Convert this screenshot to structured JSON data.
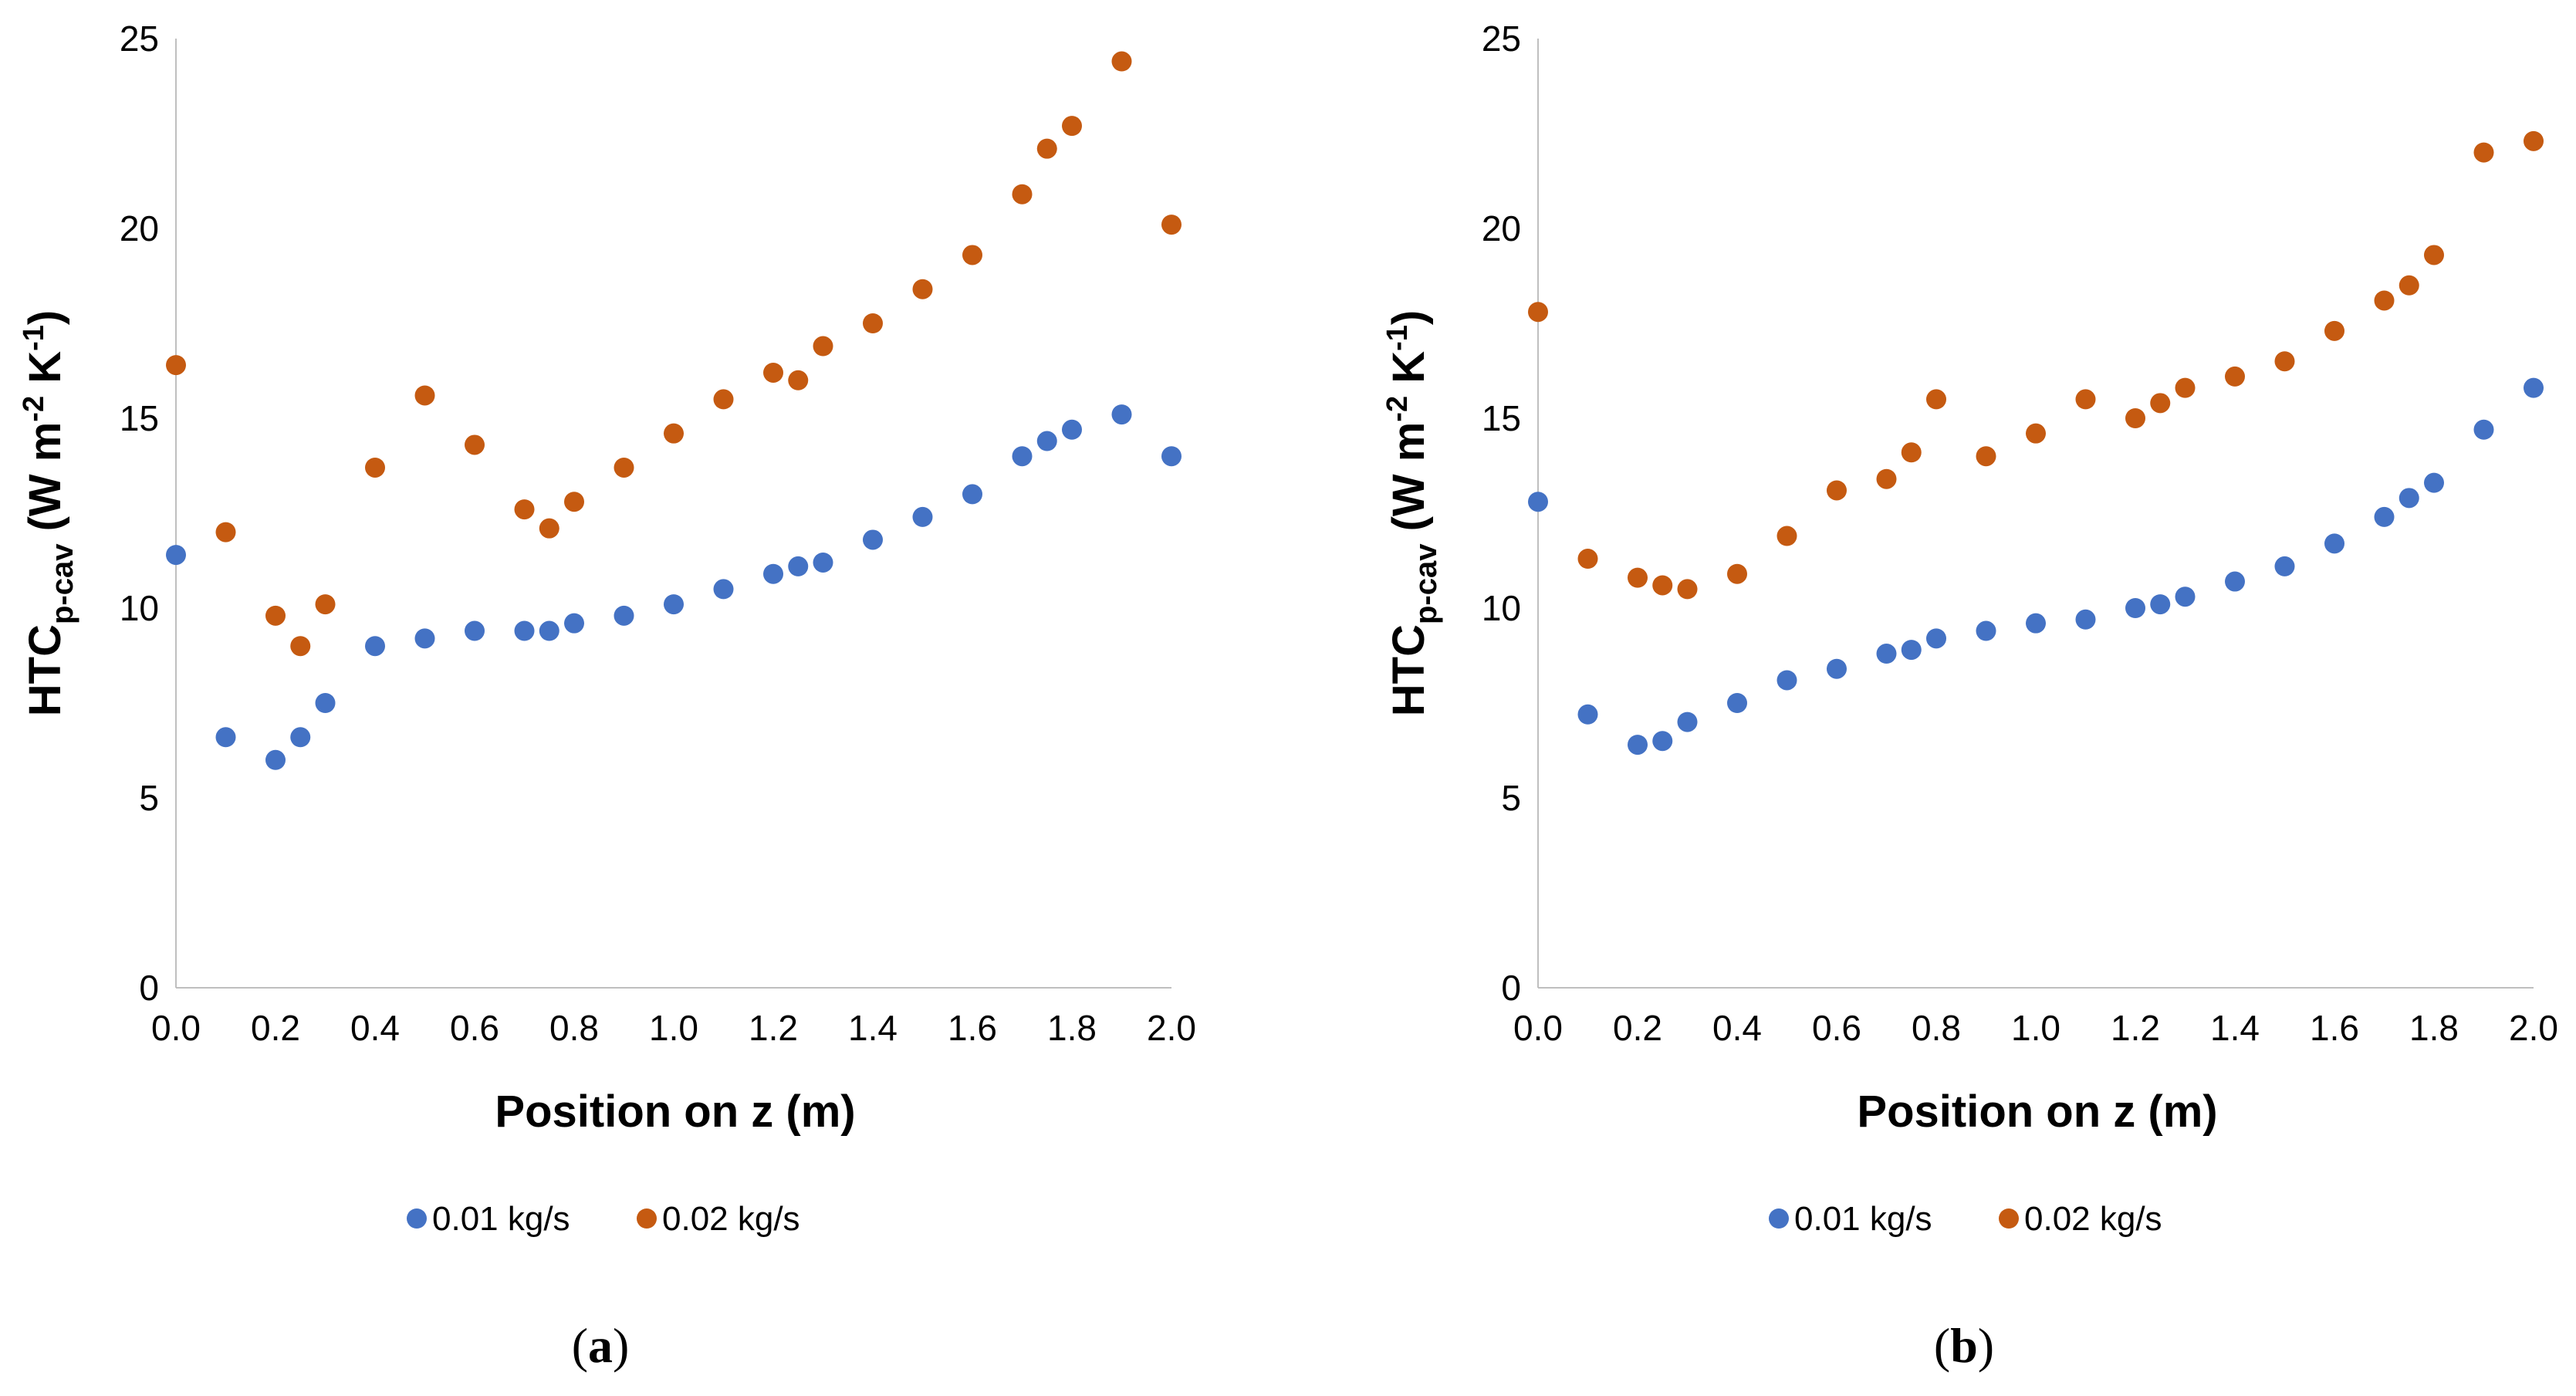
{
  "chart_data": [
    {
      "type": "scatter",
      "panel_label": "a",
      "xlabel": "Position on z (m)",
      "ylabel": {
        "main": "HTC",
        "subscript": "p-cav",
        "units_open": " (W m",
        "sup1": "-2",
        "units_mid": " K",
        "sup2": "-1",
        "units_close": ")"
      },
      "xlim": [
        0,
        2
      ],
      "ylim": [
        0,
        25
      ],
      "x_ticks": [
        "0.0",
        "0.2",
        "0.4",
        "0.6",
        "0.8",
        "1.0",
        "1.2",
        "1.4",
        "1.6",
        "1.8",
        "2.0"
      ],
      "y_ticks": [
        "0",
        "5",
        "10",
        "15",
        "20",
        "25"
      ],
      "grid": false,
      "legend_position": "bottom",
      "series": [
        {
          "name": "0.01 kg/s",
          "color": "#4472C4",
          "x": [
            0.0,
            0.1,
            0.2,
            0.25,
            0.3,
            0.4,
            0.5,
            0.6,
            0.7,
            0.75,
            0.8,
            0.9,
            1.0,
            1.1,
            1.2,
            1.25,
            1.3,
            1.4,
            1.5,
            1.6,
            1.7,
            1.75,
            1.8,
            1.9,
            2.0
          ],
          "y": [
            11.4,
            6.6,
            6.0,
            6.6,
            7.5,
            9.0,
            9.2,
            9.4,
            9.4,
            9.4,
            9.6,
            9.8,
            10.1,
            10.5,
            10.9,
            11.1,
            11.2,
            11.8,
            12.4,
            13.0,
            14.0,
            14.4,
            14.7,
            15.1,
            14.0
          ]
        },
        {
          "name": "0.02 kg/s",
          "color": "#C55A11",
          "x": [
            0.0,
            0.1,
            0.2,
            0.25,
            0.3,
            0.4,
            0.5,
            0.6,
            0.7,
            0.75,
            0.8,
            0.9,
            1.0,
            1.1,
            1.2,
            1.25,
            1.3,
            1.4,
            1.5,
            1.6,
            1.7,
            1.75,
            1.8,
            1.9,
            2.0
          ],
          "y": [
            16.4,
            12.0,
            9.8,
            9.0,
            10.1,
            13.7,
            15.6,
            14.3,
            12.6,
            12.1,
            12.8,
            13.7,
            14.6,
            15.5,
            16.2,
            16.0,
            16.9,
            17.5,
            18.4,
            19.3,
            20.9,
            22.1,
            22.7,
            24.4,
            20.1
          ]
        }
      ]
    },
    {
      "type": "scatter",
      "panel_label": "b",
      "xlabel": "Position on z (m)",
      "ylabel": {
        "main": "HTC",
        "subscript": "p-cav",
        "units_open": " (W m",
        "sup1": "-2",
        "units_mid": " K",
        "sup2": "-1",
        "units_close": ")"
      },
      "xlim": [
        0,
        2
      ],
      "ylim": [
        0,
        25
      ],
      "x_ticks": [
        "0.0",
        "0.2",
        "0.4",
        "0.6",
        "0.8",
        "1.0",
        "1.2",
        "1.4",
        "1.6",
        "1.8",
        "2.0"
      ],
      "y_ticks": [
        "0",
        "5",
        "10",
        "15",
        "20",
        "25"
      ],
      "grid": false,
      "legend_position": "bottom",
      "series": [
        {
          "name": "0.01 kg/s",
          "color": "#4472C4",
          "x": [
            0.0,
            0.1,
            0.2,
            0.25,
            0.3,
            0.4,
            0.5,
            0.6,
            0.7,
            0.75,
            0.8,
            0.9,
            1.0,
            1.1,
            1.2,
            1.25,
            1.3,
            1.4,
            1.5,
            1.6,
            1.7,
            1.75,
            1.8,
            1.9,
            2.0
          ],
          "y": [
            12.8,
            7.2,
            6.4,
            6.5,
            7.0,
            7.5,
            8.1,
            8.4,
            8.8,
            8.9,
            9.2,
            9.4,
            9.6,
            9.7,
            10.0,
            10.1,
            10.3,
            10.7,
            11.1,
            11.7,
            12.4,
            12.9,
            13.3,
            14.7,
            15.8
          ]
        },
        {
          "name": "0.02 kg/s",
          "color": "#C55A11",
          "x": [
            0.0,
            0.1,
            0.2,
            0.25,
            0.3,
            0.4,
            0.5,
            0.6,
            0.7,
            0.75,
            0.8,
            0.9,
            1.0,
            1.1,
            1.2,
            1.25,
            1.3,
            1.4,
            1.5,
            1.6,
            1.7,
            1.75,
            1.8,
            1.9,
            2.0
          ],
          "y": [
            17.8,
            11.3,
            10.8,
            10.6,
            10.5,
            10.9,
            11.9,
            13.1,
            13.4,
            14.1,
            15.5,
            14.0,
            14.6,
            15.5,
            15.0,
            15.4,
            15.8,
            16.1,
            16.5,
            17.3,
            18.1,
            18.5,
            19.3,
            22.0,
            22.3
          ]
        }
      ]
    }
  ]
}
